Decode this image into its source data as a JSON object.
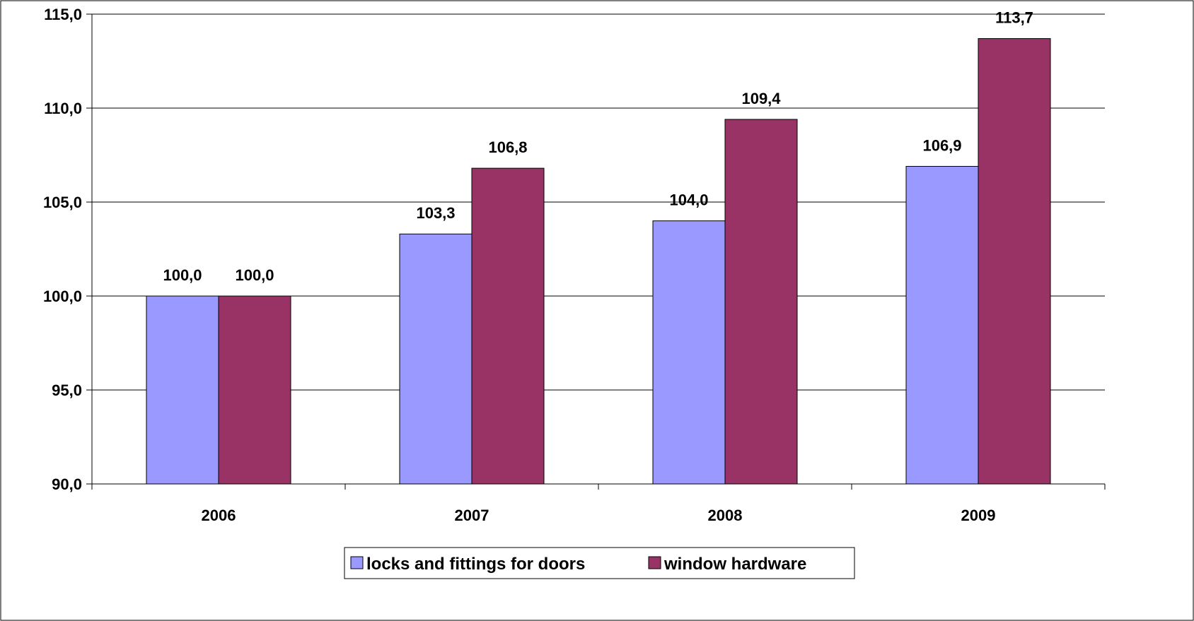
{
  "chart_data": {
    "type": "bar",
    "categories": [
      "2006",
      "2007",
      "2008",
      "2009"
    ],
    "series": [
      {
        "name": "locks and fittings for doors",
        "values": [
          100.0,
          103.3,
          104.0,
          106.9
        ],
        "color": "#9999FF"
      },
      {
        "name": "window hardware",
        "values": [
          100.0,
          106.8,
          109.4,
          113.7
        ],
        "color": "#993366"
      }
    ],
    "data_labels": [
      [
        "100,0",
        "103,3",
        "104,0",
        "106,9"
      ],
      [
        "100,0",
        "106,8",
        "109,4",
        "113,7"
      ]
    ],
    "ylim": [
      90,
      115
    ],
    "yticks": [
      90,
      95,
      100,
      105,
      110,
      115
    ],
    "ytick_labels": [
      "90,0",
      "95,0",
      "100,0",
      "105,0",
      "110,0",
      "115,0"
    ],
    "grid": true,
    "legend_position": "bottom"
  }
}
